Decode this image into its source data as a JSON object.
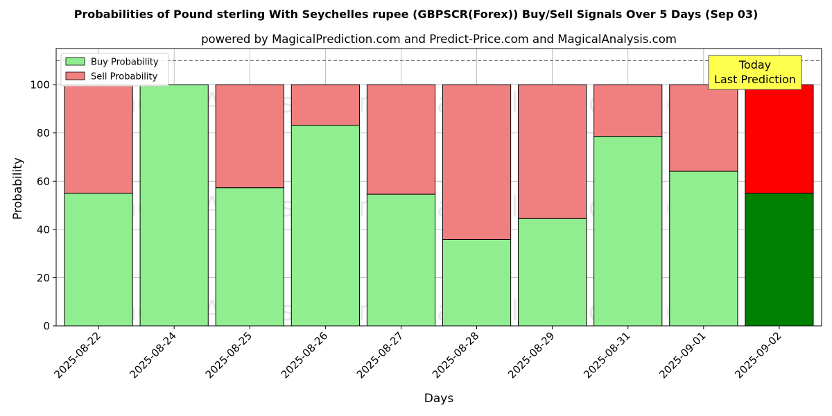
{
  "chart_data": {
    "type": "bar",
    "stacked": true,
    "title": "Probabilities of Pound sterling With Seychelles rupee (GBPSCR(Forex)) Buy/Sell Signals Over 5 Days (Sep 03)",
    "subtitle": "powered by MagicalPrediction.com and Predict-Price.com and MagicalAnalysis.com",
    "xlabel": "Days",
    "ylabel": "Probability",
    "ylim": [
      0,
      115
    ],
    "yticks": [
      0,
      20,
      40,
      60,
      80,
      100
    ],
    "grid": true,
    "reference_line": 110,
    "categories": [
      "2025-08-22",
      "2025-08-24",
      "2025-08-25",
      "2025-08-26",
      "2025-08-27",
      "2025-08-28",
      "2025-08-29",
      "2025-08-31",
      "2025-09-01",
      "2025-09-02"
    ],
    "series": [
      {
        "name": "Buy Probability",
        "color": "#90ee90",
        "highlight_color": "#008000",
        "values": [
          55,
          100,
          57.3,
          83.2,
          54.6,
          35.8,
          44.5,
          78.6,
          64.1,
          55
        ]
      },
      {
        "name": "Sell Probability",
        "color": "#f08080",
        "highlight_color": "#ff0000",
        "values": [
          45,
          0,
          42.7,
          16.8,
          45.4,
          64.2,
          55.5,
          21.4,
          35.9,
          45
        ]
      }
    ],
    "highlight_index": 9,
    "legend_position": "top-left",
    "annotation": {
      "line1": "Today",
      "line2": "Last Prediction",
      "bg": "#ffff4d"
    },
    "watermarks": [
      "MagicalAnalysis.com",
      "MagicalPrediction.com",
      "MagicalAnalysis.com",
      "MagicalPrediction.com",
      "MagicalAnalysis.com",
      "MagicalPrediction.com"
    ]
  }
}
